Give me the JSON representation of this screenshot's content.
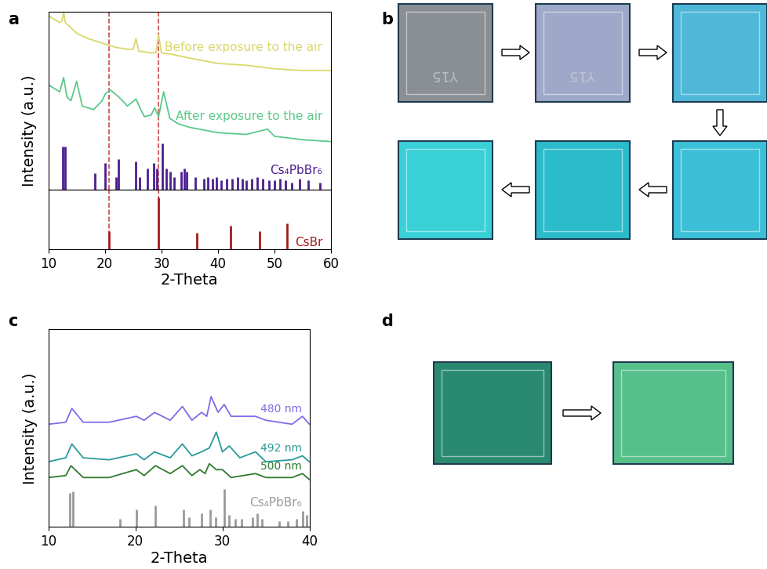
{
  "chart_data": [
    {
      "panel": "a",
      "type": "line",
      "ylabel": "Intensity (a.u.)",
      "xlim": [
        10,
        60
      ],
      "ylim": [
        0,
        100
      ],
      "xticks": [],
      "yticks": [],
      "tick_labels": false,
      "reference_lines": {
        "x": [
          20.8,
          29.5
        ],
        "color": "#c94a4a",
        "line_style": "dashed"
      },
      "series": [
        {
          "name": "Before exposure to the air",
          "type": "line",
          "color": "#d8d86a",
          "x": [
            10,
            11,
            12,
            12.4,
            12.7,
            13,
            14,
            15,
            17,
            20,
            22,
            24,
            25,
            25.5,
            26,
            28,
            29,
            29.5,
            30,
            32,
            35,
            40,
            45,
            50,
            55,
            60
          ],
          "values": [
            98,
            96,
            94,
            95,
            100,
            94,
            91,
            88,
            85,
            82,
            80,
            79,
            79,
            85,
            78,
            77,
            77,
            87,
            77,
            76,
            74,
            71,
            70,
            68,
            67,
            67
          ]
        },
        {
          "name": "After exposure to the air",
          "type": "line",
          "color": "#5cc98a",
          "x": [
            10,
            11,
            12,
            12.7,
            13.3,
            14,
            15,
            16,
            18,
            19.5,
            20.1,
            21,
            22.5,
            24,
            25.5,
            26.5,
            27,
            28.2,
            28.8,
            29.5,
            30.4,
            31.5,
            33,
            35,
            40,
            45,
            48.8,
            50,
            55,
            60
          ],
          "values": [
            59,
            57,
            55,
            63,
            52,
            50,
            61,
            47,
            45,
            50,
            54,
            56,
            52,
            47,
            51,
            44,
            41,
            42,
            46,
            41,
            55,
            40,
            37,
            35,
            32,
            31,
            34,
            30,
            28,
            27
          ]
        },
        {
          "name": "Cs₄PbBr₆",
          "type": "stick",
          "color": "#4b1f8f",
          "x": [
            12.6,
            12.9,
            18.2,
            20.1,
            22.0,
            22.4,
            25.5,
            26.2,
            27.6,
            28.6,
            29.2,
            30.1,
            30.8,
            31.5,
            32.3,
            33.5,
            34.0,
            34.5,
            36.0,
            37.5,
            38.2,
            39.0,
            39.8,
            40.6,
            41.5,
            42.5,
            43.5,
            44.3,
            45.0,
            46.0,
            47.0,
            48.0,
            49.0,
            50.0,
            51.0,
            52.0,
            53.0,
            54.5,
            56.0,
            58.0
          ],
          "values": [
            24,
            24,
            9,
            15,
            7,
            17,
            16,
            7,
            12,
            15,
            12,
            26,
            12,
            10,
            7,
            10,
            12,
            10,
            7,
            6,
            7,
            6,
            7,
            5,
            6,
            6,
            7,
            6,
            5,
            6,
            7,
            6,
            5,
            5,
            6,
            5,
            4,
            6,
            5,
            4
          ]
        }
      ]
    },
    {
      "type": "line",
      "xlabel": "2-Theta",
      "xlim": [
        10,
        60
      ],
      "ylim": [
        0,
        100
      ],
      "xticks": [
        10,
        20,
        30,
        40,
        50,
        60
      ],
      "yticks": [],
      "tick_labels": "x",
      "reference_lines": {
        "x": [
          20.8,
          29.5
        ],
        "color": "#c94a4a",
        "line_style": "dashed"
      },
      "series": [
        {
          "name": "CsBr",
          "type": "stick",
          "color": "#a31c1c",
          "x": [
            20.8,
            29.5,
            36.3,
            42.2,
            47.4,
            52.3
          ],
          "values": [
            30,
            87,
            28,
            39,
            30,
            43
          ]
        }
      ]
    },
    {
      "panel": "c",
      "type": "line",
      "xlabel": "2-Theta",
      "ylabel": "Intensity (a.u.)",
      "xlim": [
        10,
        40
      ],
      "ylim": [
        0,
        100
      ],
      "xticks": [
        10,
        20,
        30,
        40
      ],
      "yticks": [],
      "tick_labels": "x",
      "series": [
        {
          "name": "480 nm",
          "type": "line",
          "color": "#7a6ee8",
          "x": [
            10,
            12,
            12.7,
            14,
            17,
            20.1,
            21,
            22.2,
            24,
            25.4,
            26.5,
            27.6,
            28.2,
            28.7,
            29.5,
            30.2,
            31,
            33.8,
            35,
            38,
            39.2,
            40
          ],
          "values": [
            52,
            53,
            60,
            53,
            53,
            56,
            54,
            58,
            54,
            61,
            54,
            58,
            56,
            66,
            58,
            62,
            56,
            56,
            54,
            52,
            56,
            52
          ]
        },
        {
          "name": "492 nm",
          "type": "line",
          "color": "#2a9a9a",
          "x": [
            10,
            12,
            12.7,
            14,
            17,
            20.1,
            21,
            22.2,
            24,
            25.4,
            26.5,
            27.6,
            28.5,
            29.3,
            30.0,
            30.8,
            32,
            33.8,
            35,
            38,
            39.2,
            40
          ],
          "values": [
            33,
            35,
            42,
            35,
            34,
            37,
            34,
            38,
            35,
            42,
            36,
            38,
            40,
            48,
            38,
            41,
            35,
            38,
            33,
            34,
            36,
            33
          ]
        },
        {
          "name": "500 nm",
          "type": "line",
          "color": "#2f7a2f",
          "x": [
            10,
            12,
            12.6,
            14,
            17,
            20.1,
            21,
            22.3,
            24,
            25.4,
            26.5,
            27.4,
            28,
            28.5,
            29.3,
            30.0,
            31,
            33.8,
            35,
            38,
            39.2,
            40
          ],
          "values": [
            25,
            26,
            31,
            25,
            25,
            29,
            26,
            31,
            27,
            31,
            26,
            29,
            27,
            32,
            29,
            29,
            25,
            27,
            25,
            25,
            27,
            24
          ]
        },
        {
          "name": "Cs₄PbBr₆",
          "type": "stick",
          "color": "#9a9a9a",
          "x": [
            12.5,
            12.8,
            18.2,
            20.1,
            22.3,
            25.5,
            26.2,
            27.6,
            28.6,
            29.2,
            30.2,
            30.8,
            31.5,
            32.2,
            33.5,
            34.0,
            34.5,
            36.5,
            37.5,
            38.5,
            39.2,
            39.7
          ],
          "values": [
            17,
            18,
            4,
            9,
            11,
            9,
            5,
            7,
            9,
            5,
            19,
            6,
            4,
            4,
            5,
            7,
            4,
            3,
            3,
            4,
            8,
            6
          ]
        }
      ]
    }
  ],
  "images": [
    {
      "panel": "b",
      "text": "Y15"
    },
    {
      "panel": "d"
    }
  ]
}
